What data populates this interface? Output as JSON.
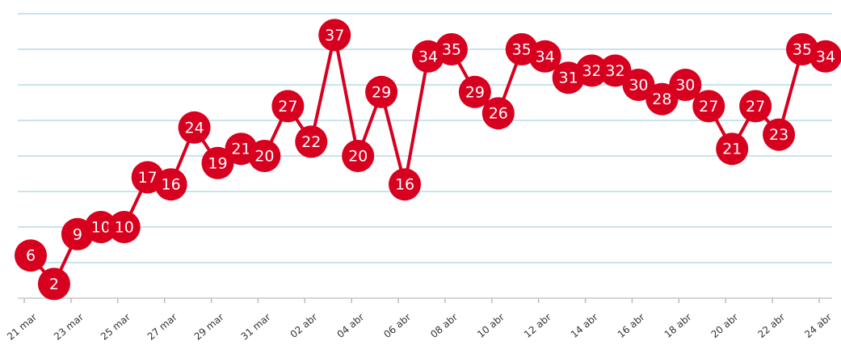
{
  "chart_data": {
    "type": "line",
    "categories": [
      "21 mar",
      null,
      "23 mar",
      null,
      "25 mar",
      null,
      "27 mar",
      null,
      "29 mar",
      null,
      "31 mar",
      null,
      "02 abr",
      null,
      "04 abr",
      null,
      "06 abr",
      null,
      "08 abr",
      null,
      "10 abr",
      null,
      "12 abr",
      null,
      "14 abr",
      null,
      "16 abr",
      null,
      "18 abr",
      null,
      "20 abr",
      null,
      "22 abr",
      null,
      "24 abr"
    ],
    "values": [
      6,
      2,
      9,
      10,
      10,
      17,
      16,
      24,
      19,
      21,
      20,
      27,
      22,
      37,
      20,
      29,
      16,
      34,
      35,
      29,
      26,
      35,
      34,
      31,
      32,
      32,
      30,
      28,
      30,
      27,
      21,
      27,
      23,
      35,
      34
    ],
    "color": "#d7001e",
    "ylim": [
      0,
      40
    ],
    "yticks": [
      0,
      5,
      10,
      15,
      20,
      25,
      30,
      35,
      40
    ],
    "grid": true
  }
}
